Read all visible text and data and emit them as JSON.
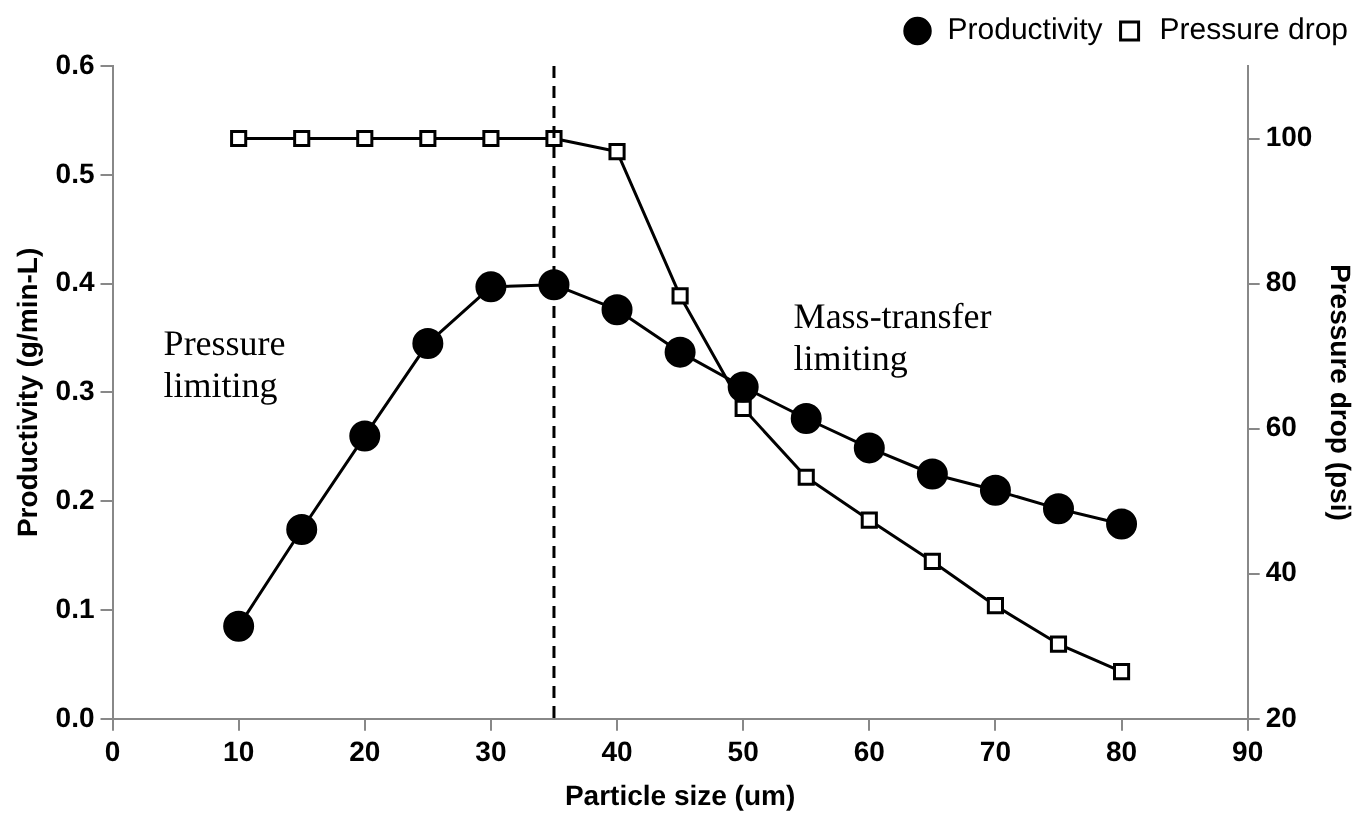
{
  "chart_data": {
    "type": "line",
    "xlabel": "Particle size (um)",
    "ylabel": "Productivity (g/min-L)",
    "y2label": "Pressure drop (psi)",
    "x": [
      10,
      15,
      20,
      25,
      30,
      35,
      40,
      45,
      50,
      55,
      60,
      65,
      70,
      75,
      80
    ],
    "series": [
      {
        "name": "Productivity",
        "color": "#000000",
        "marker": "circle",
        "values": [
          0.085,
          0.174,
          0.26,
          0.345,
          0.397,
          0.399,
          0.376,
          0.337,
          0.305,
          0.276,
          0.249,
          0.225,
          0.21,
          0.193,
          0.179
        ]
      },
      {
        "name": "Pressure drop",
        "color": "#000000",
        "marker": "square",
        "axis": "y2",
        "values": [
          100,
          100,
          100,
          100,
          100,
          100,
          98.2,
          78.3,
          62.8,
          53.3,
          47.4,
          41.7,
          35.6,
          30.3,
          26.5
        ]
      }
    ],
    "xlim": [
      0,
      90
    ],
    "xticks": [
      0,
      10,
      20,
      30,
      40,
      50,
      60,
      70,
      80,
      90
    ],
    "ylim": [
      0,
      0.6
    ],
    "yticks": [
      {
        "value": 0,
        "label": "0.0"
      },
      0.1,
      0.2,
      0.3,
      0.4,
      0.5,
      0.6
    ],
    "y2lim": [
      20,
      110
    ],
    "y2ticks": [
      20,
      40,
      60,
      80,
      100
    ],
    "ref_lines": [
      {
        "axis": "x",
        "value": 35,
        "line_style": "dashed",
        "color": "#000000"
      }
    ],
    "annotations": [
      "Pressure\nlimiting",
      "Mass-transfer\nlimiting"
    ],
    "grid": false,
    "legend": "top right",
    "line_style": "solid"
  }
}
